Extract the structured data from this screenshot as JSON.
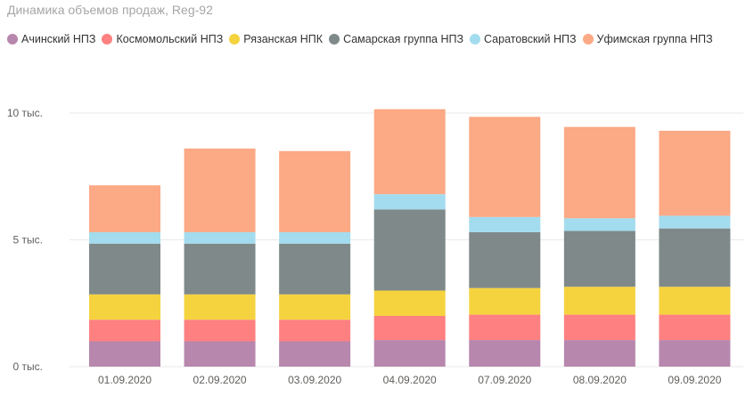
{
  "title": "Динамика объемов продаж, Reg-92",
  "chart_data": {
    "type": "bar",
    "stacked": true,
    "categories": [
      "01.09.2020",
      "02.09.2020",
      "03.09.2020",
      "04.09.2020",
      "07.09.2020",
      "08.09.2020",
      "09.09.2020"
    ],
    "series": [
      {
        "name": "Ачинский НПЗ",
        "color": "#b887ad",
        "values": [
          1000,
          1000,
          1000,
          1050,
          1050,
          1050,
          1050
        ]
      },
      {
        "name": "Космомольский НПЗ",
        "color": "#ff8080",
        "values": [
          850,
          850,
          850,
          950,
          1000,
          1000,
          1000
        ]
      },
      {
        "name": "Рязанская НПК",
        "color": "#f5d33f",
        "values": [
          1000,
          1000,
          1000,
          1000,
          1050,
          1100,
          1100
        ]
      },
      {
        "name": "Самарская группа НПЗ",
        "color": "#7f898a",
        "values": [
          2000,
          2000,
          2000,
          3200,
          2200,
          2200,
          2300
        ]
      },
      {
        "name": "Саратовский НПЗ",
        "color": "#a3dcee",
        "values": [
          450,
          450,
          450,
          600,
          600,
          500,
          500
        ]
      },
      {
        "name": "Уфимская группа НПЗ",
        "color": "#fca985",
        "values": [
          1850,
          3300,
          3200,
          3350,
          3950,
          3600,
          3350
        ]
      }
    ],
    "y_ticks": [
      {
        "value": 0,
        "label": "0 тыс."
      },
      {
        "value": 5000,
        "label": "5 тыс."
      },
      {
        "value": 10000,
        "label": "10 тыс."
      }
    ],
    "ylim": [
      0,
      10000
    ],
    "grid": true,
    "legend_position": "top-left"
  }
}
